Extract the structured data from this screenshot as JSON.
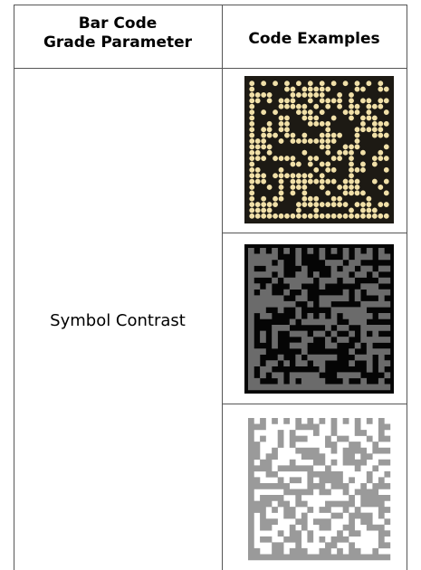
{
  "table": {
    "header": {
      "parameter": [
        "Bar Code",
        "Grade Parameter"
      ],
      "examples": "Code Examples"
    },
    "rows": [
      {
        "parameter": "Symbol Contrast"
      }
    ]
  }
}
